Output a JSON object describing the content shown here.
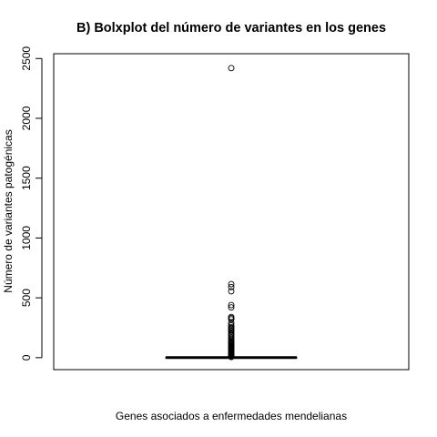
{
  "chart_data": {
    "type": "boxplot",
    "title": "B) Bolxplot del número de variantes en los genes",
    "xlabel": "Genes asociados a enfermedades mendelianas",
    "ylabel": "Número de variantes patogénicas",
    "ylim": [
      -100,
      2540
    ],
    "y_ticks": [
      0,
      500,
      1000,
      1500,
      2000,
      2500
    ],
    "grid": false,
    "box": {
      "min": 0,
      "q1": 0,
      "median": 1,
      "q3": 2,
      "max": 5
    },
    "outliers": [
      2420,
      615,
      590,
      555,
      440,
      420,
      340,
      330,
      320,
      290,
      270,
      255,
      245,
      240,
      230,
      220,
      205,
      195,
      185,
      170,
      160,
      150,
      140,
      132,
      125,
      118,
      110,
      102,
      95,
      88,
      82,
      76,
      70,
      64,
      58,
      52,
      47,
      42,
      37,
      33,
      29,
      25,
      22,
      19,
      16,
      13,
      11,
      9,
      7,
      6
    ]
  }
}
